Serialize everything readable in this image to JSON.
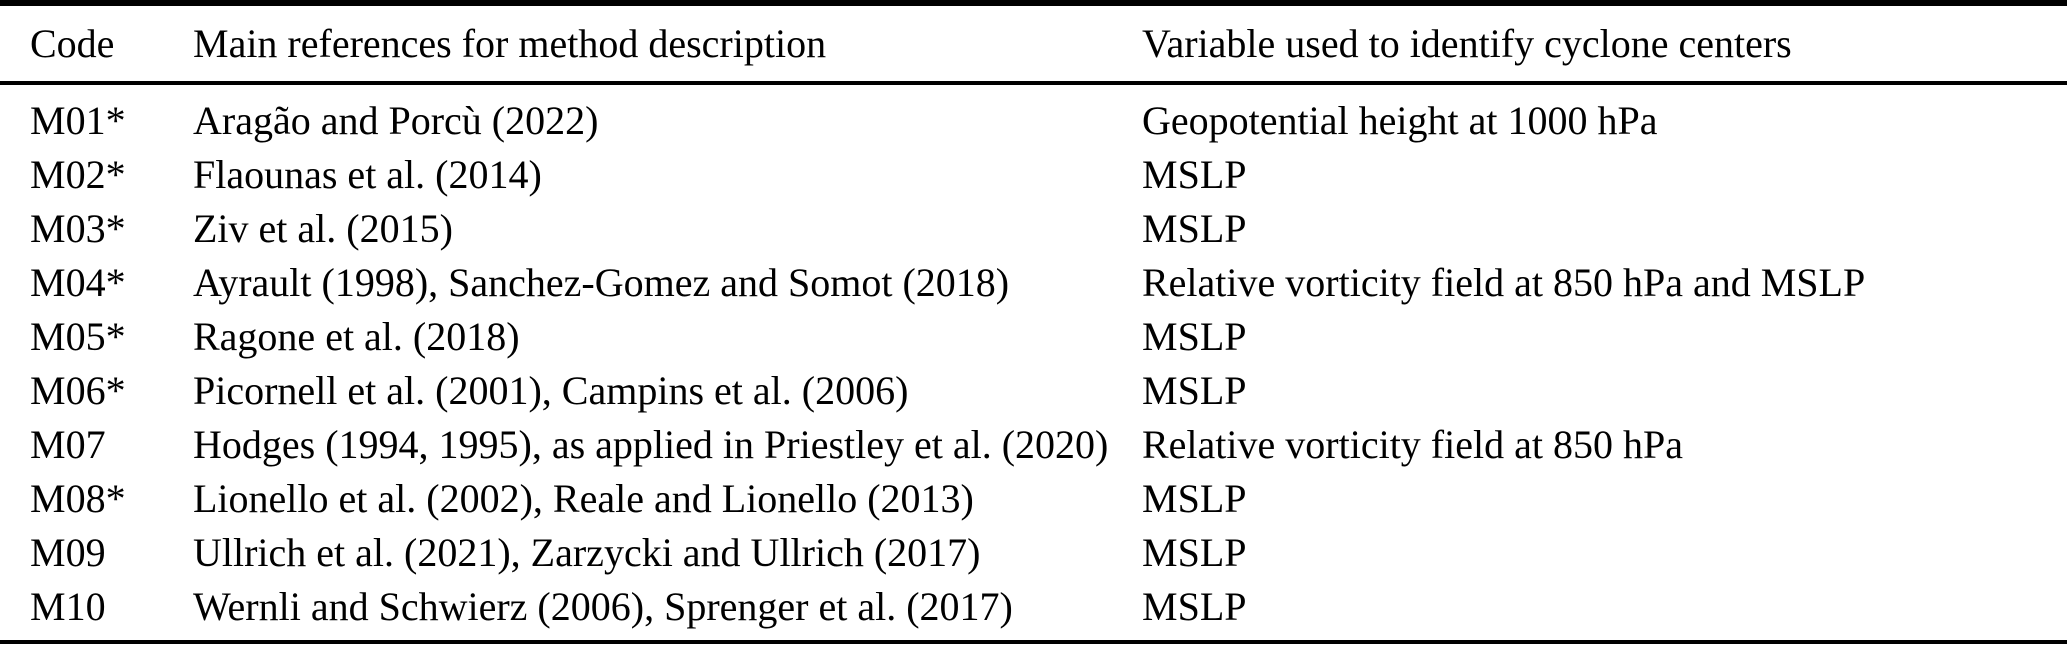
{
  "table": {
    "header": {
      "code": "Code",
      "references": "Main references for method description",
      "variable": "Variable used to identify cyclone centers"
    },
    "rows": [
      {
        "code": "M01*",
        "references": "Aragão and Porcù (2022)",
        "variable": "Geopotential height at 1000 hPa"
      },
      {
        "code": "M02*",
        "references": "Flaounas et al. (2014)",
        "variable": "MSLP"
      },
      {
        "code": "M03*",
        "references": "Ziv et al. (2015)",
        "variable": "MSLP"
      },
      {
        "code": "M04*",
        "references": "Ayrault (1998), Sanchez-Gomez and Somot (2018)",
        "variable": "Relative vorticity field at 850 hPa and MSLP"
      },
      {
        "code": "M05*",
        "references": "Ragone et al. (2018)",
        "variable": "MSLP"
      },
      {
        "code": "M06*",
        "references": "Picornell et al. (2001), Campins et al. (2006)",
        "variable": "MSLP"
      },
      {
        "code": "M07",
        "references": "Hodges (1994, 1995), as applied in Priestley et al. (2020)",
        "variable": "Relative vorticity field at 850 hPa"
      },
      {
        "code": "M08*",
        "references": "Lionello et al. (2002), Reale and Lionello (2013)",
        "variable": "MSLP"
      },
      {
        "code": "M09",
        "references": "Ullrich et al. (2021), Zarzycki and Ullrich (2017)",
        "variable": "MSLP"
      },
      {
        "code": "M10",
        "references": "Wernli and Schwierz (2006), Sprenger et al. (2017)",
        "variable": "MSLP"
      }
    ]
  }
}
